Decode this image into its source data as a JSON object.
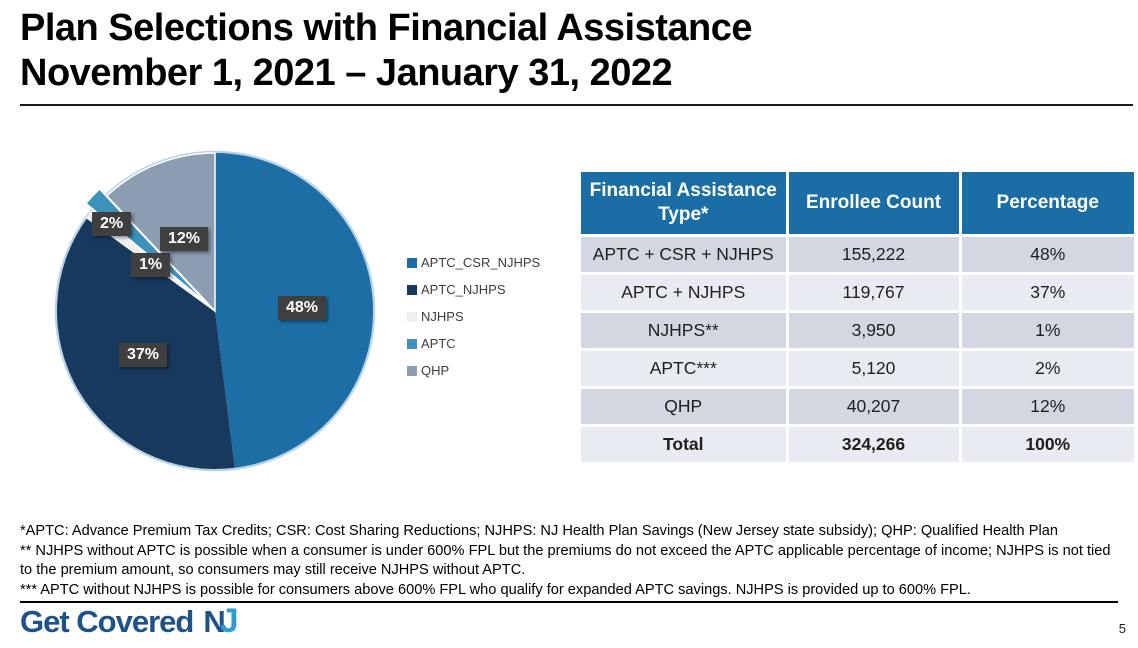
{
  "slide": {
    "title_line1": "Plan Selections with Financial Assistance",
    "title_line2": "November 1, 2021 – January 31, 2022",
    "page_number": "5"
  },
  "chart_data": {
    "type": "pie",
    "title": "Plan Selections with Financial Assistance, November 1, 2021 – January 31, 2022",
    "start_angle": "top, clockwise",
    "legend_position": "right",
    "outline_color": "#b7d3e8",
    "label_badge_bg": "#3f3f3f",
    "slices": [
      {
        "label": "APTC_CSR_NJHPS",
        "value_pct": 48,
        "pct_label": "48%",
        "color": "#1c6ea4",
        "exploded": false
      },
      {
        "label": "APTC_NJHPS",
        "value_pct": 37,
        "pct_label": "37%",
        "color": "#17395d",
        "exploded": false
      },
      {
        "label": "NJHPS",
        "value_pct": 1,
        "pct_label": "1%",
        "color": "#efefef",
        "exploded": false
      },
      {
        "label": "APTC",
        "value_pct": 2,
        "pct_label": "2%",
        "color": "#3d92bd",
        "exploded": true
      },
      {
        "label": "QHP",
        "value_pct": 12,
        "pct_label": "12%",
        "color": "#8c9cb1",
        "exploded": false
      }
    ]
  },
  "table": {
    "header_bg": "#1b6ea5",
    "row_bg_dark": "#d3d7e2",
    "row_bg_light": "#e9ebf2",
    "headers": [
      "Financial Assistance Type*",
      "Enrollee Count",
      "Percentage"
    ],
    "rows": [
      [
        "APTC + CSR + NJHPS",
        "155,222",
        "48%"
      ],
      [
        "APTC + NJHPS",
        "119,767",
        "37%"
      ],
      [
        "NJHPS**",
        "3,950",
        "1%"
      ],
      [
        "APTC***",
        "5,120",
        "2%"
      ],
      [
        "QHP",
        "40,207",
        "12%"
      ]
    ],
    "total_row": [
      "Total",
      "324,266",
      "100%"
    ]
  },
  "footnotes": {
    "line1": "*APTC: Advance Premium Tax Credits; CSR: Cost Sharing Reductions; NJHPS: NJ Health Plan Savings (New Jersey state subsidy); QHP: Qualified Health Plan",
    "line2": "** NJHPS without APTC is possible when a consumer is under 600% FPL but the premiums do not exceed the APTC applicable percentage of income; NJHPS is not tied to the premium amount, so consumers may still receive NJHPS without APTC.",
    "line3": "*** APTC without NJHPS is possible for consumers above 600% FPL who qualify for expanded APTC savings. NJHPS is provided up to 600% FPL."
  },
  "logo": {
    "part1": "Get Covered",
    "part2": "N",
    "part3": "J",
    "navy": "#1e5288",
    "light_blue": "#2f9bd5"
  }
}
